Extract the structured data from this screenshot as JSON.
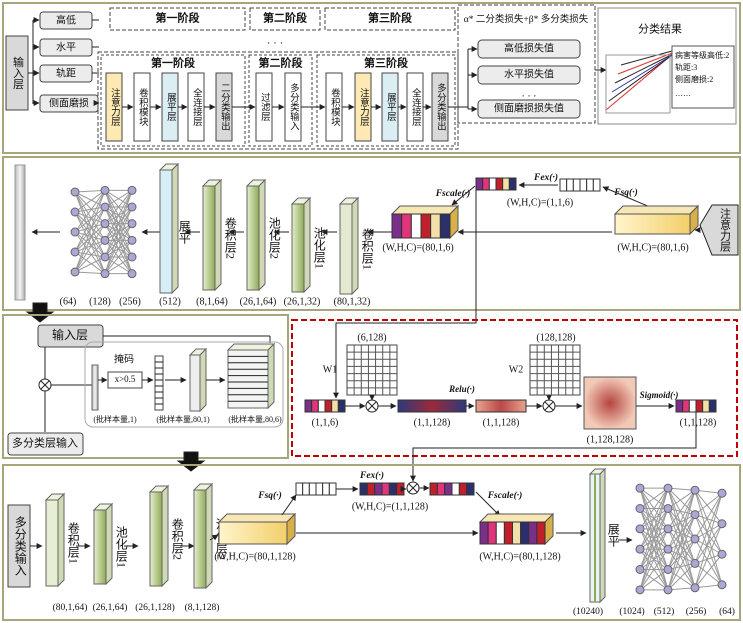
{
  "panel1": {
    "input_layer": "输入层",
    "features": [
      "高低",
      "水平",
      "轨距",
      "侧面磨损"
    ],
    "stage_headers": [
      "第一阶段",
      "第二阶段",
      "第三阶段"
    ],
    "header_ellipsis": "· · ·",
    "stage1": {
      "title": "第一阶段",
      "layers": [
        "注意力层",
        "卷积模块",
        "展平层",
        "全连接层",
        "二分类输出"
      ]
    },
    "stage2": {
      "title": "第二阶段",
      "layers": [
        "过滤层",
        "多分类输入"
      ]
    },
    "stage3": {
      "title": "第三阶段",
      "layers": [
        "卷积模块",
        "注意力层",
        "展平层",
        "全连接层",
        "多分类输出"
      ]
    },
    "loss": {
      "title": "α* 二分类损失+β* 多分类损失",
      "items": [
        "高低损失值",
        "水平损失值",
        "· · ·",
        "侧面磨损损失值"
      ]
    },
    "result": {
      "title": "分类结果",
      "lines": [
        "病害等级高低:2",
        "轨距:3",
        "侧面磨损:2",
        "……"
      ]
    }
  },
  "panel2": {
    "input": "注意力层",
    "layers": [
      "展平",
      "卷积层2",
      "池化层2",
      "池化层1",
      "卷积层1"
    ],
    "shapes": [
      "(64)",
      "(128)",
      "(256)",
      "(512)",
      "(8,1,64)",
      "(26,1,64)",
      "(26,1,32)",
      "(80,1,32)"
    ],
    "f_scale": "Fscale(·)",
    "f_ex": "Fex(·)",
    "f_sq": "Fsq(·)",
    "excite_shape": "(W,H,C)=(1,1,6)",
    "scale_shape": "(W,H,C)=(80,1,6)",
    "input_shape": "(W,H,C)=(80,1,6)"
  },
  "panel3": {
    "input": "输入层",
    "mask": "掩码",
    "threshold": "x>0.5",
    "multi_input": "多分类层输入",
    "shapes": [
      "(批样本量,1)",
      "(批样本量,80,1)",
      "(批样本量,80,6)"
    ]
  },
  "excitation": {
    "w1_shape": "(6,128)",
    "w1": "W1",
    "w2_shape": "(128,128)",
    "w2": "W2",
    "relu": "Relu(·)",
    "sigmoid": "Sigmoid(·)",
    "shapes": [
      "(1,1,6)",
      "(1,1,128)",
      "(1,1,128)",
      "(1,128,128)",
      "(1,1,128)"
    ]
  },
  "panel5": {
    "input": "多分类输入",
    "layers": [
      "卷积层1",
      "池化层1",
      "卷积层2",
      "池化层2"
    ],
    "shapes": [
      "(80,1,64)",
      "(26,1,64)",
      "(26,1,128)",
      "(8,1,128)"
    ],
    "f_sq": "Fsq(·)",
    "f_ex": "Fex(·)",
    "f_scale": "Fscale(·)",
    "sq_shape": "(W,H,C)=(80,1,128)",
    "ex_shape": "(W,H,C)=(1,1,128)",
    "scale_shape": "(W,H,C)=(80,1,128)",
    "flatten": "展平",
    "flatten_shape": "(10240)",
    "dense_shapes": [
      "(1024)",
      "(512)",
      "(256)",
      "(64)"
    ]
  }
}
